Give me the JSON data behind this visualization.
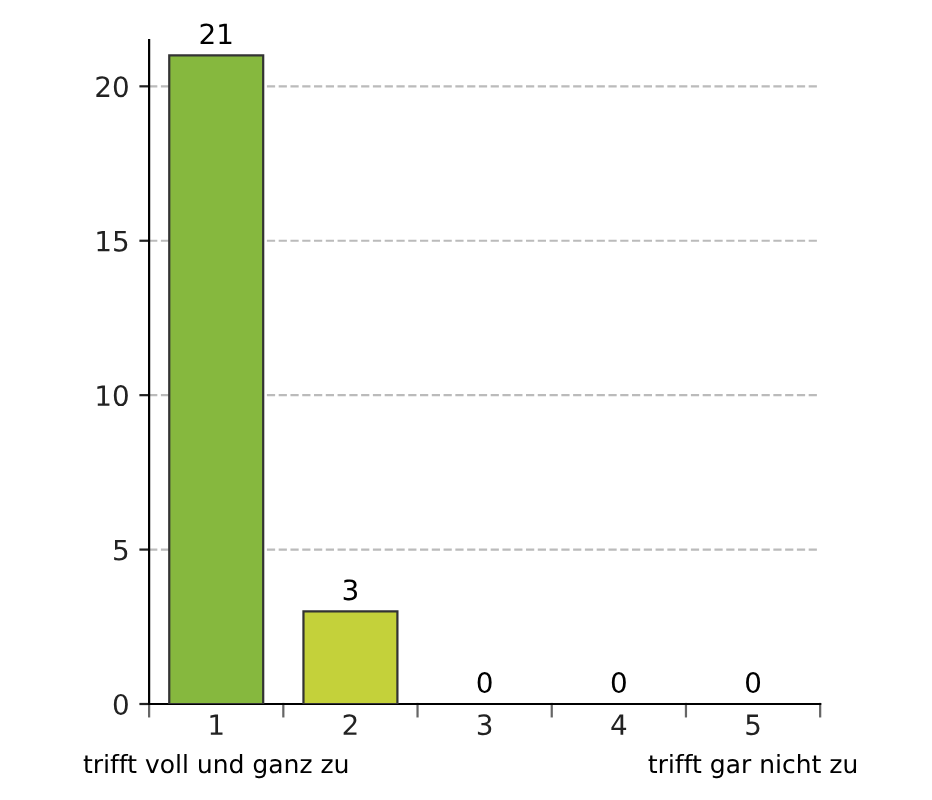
{
  "chart_data": {
    "type": "bar",
    "categories": [
      "1",
      "2",
      "3",
      "4",
      "5"
    ],
    "values": [
      21,
      3,
      0,
      0,
      0
    ],
    "colors": [
      "#86b83e",
      "#c4d13a",
      null,
      null,
      null
    ],
    "ylim": [
      0,
      21.5
    ],
    "yticks": [
      0,
      5,
      10,
      15,
      20
    ],
    "grid": "y",
    "data_labels": true,
    "annotations": [
      "trifft voll und ganz zu",
      "trifft gar nicht zu"
    ]
  }
}
